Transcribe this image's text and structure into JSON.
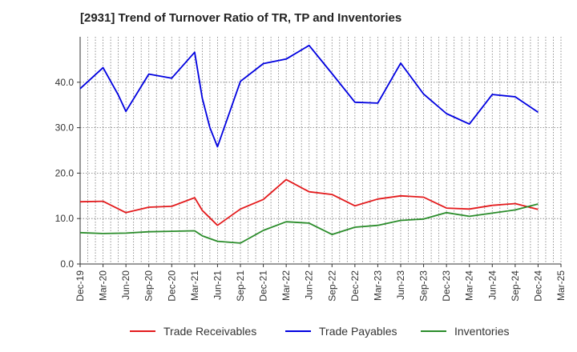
{
  "chart_data": {
    "type": "line",
    "title": "[2931]  Trend of Turnover Ratio of TR, TP and Inventories",
    "xlabel": "",
    "ylabel": "",
    "ylim": [
      0,
      50
    ],
    "yticks": [
      "0.0",
      "10.0",
      "20.0",
      "30.0",
      "40.0"
    ],
    "ytick_values": [
      0,
      10,
      20,
      30,
      40
    ],
    "x": [
      "Dec-19",
      "Jan-20",
      "Feb-20",
      "Mar-20",
      "Apr-20",
      "May-20",
      "Jun-20",
      "Jul-20",
      "Aug-20",
      "Sep-20",
      "Oct-20",
      "Nov-20",
      "Dec-20",
      "Jan-21",
      "Feb-21",
      "Mar-21",
      "Apr-21",
      "May-21",
      "Jun-21",
      "Jul-21",
      "Aug-21",
      "Sep-21",
      "Oct-21",
      "Nov-21",
      "Dec-21",
      "Jan-22",
      "Feb-22",
      "Mar-22",
      "Apr-22",
      "May-22",
      "Jun-22",
      "Jul-22",
      "Aug-22",
      "Sep-22",
      "Oct-22",
      "Nov-22",
      "Dec-22",
      "Jan-23",
      "Feb-23",
      "Mar-23",
      "Apr-23",
      "May-23",
      "Jun-23",
      "Jul-23",
      "Aug-23",
      "Sep-23",
      "Oct-23",
      "Nov-23",
      "Dec-23",
      "Jan-24",
      "Feb-24",
      "Mar-24",
      "Apr-24",
      "May-24",
      "Jun-24",
      "Jul-24",
      "Aug-24",
      "Sep-24",
      "Oct-24",
      "Nov-24",
      "Dec-24",
      "Jan-25",
      "Feb-25",
      "Mar-25"
    ],
    "xtick_labels": [
      "Dec-19",
      "Mar-20",
      "Jun-20",
      "Sep-20",
      "Dec-20",
      "Mar-21",
      "Jun-21",
      "Sep-21",
      "Dec-21",
      "Mar-22",
      "Jun-22",
      "Sep-22",
      "Dec-22",
      "Mar-23",
      "Jun-23",
      "Sep-23",
      "Dec-23",
      "Mar-24",
      "Jun-24",
      "Sep-24",
      "Dec-24",
      "Mar-25"
    ],
    "grid": true,
    "legend_position": "bottom",
    "series": [
      {
        "name": "Trade Receivables",
        "color": "#e31a1c",
        "points": [
          [
            "Dec-19",
            13.7
          ],
          [
            "Mar-20",
            13.8
          ],
          [
            "Jun-20",
            11.3
          ],
          [
            "Sep-20",
            12.5
          ],
          [
            "Dec-20",
            12.7
          ],
          [
            "Mar-21",
            14.6
          ],
          [
            "Apr-21",
            11.8
          ],
          [
            "Jun-21",
            8.5
          ],
          [
            "Sep-21",
            12.1
          ],
          [
            "Dec-21",
            14.2
          ],
          [
            "Mar-22",
            18.6
          ],
          [
            "Jun-22",
            15.9
          ],
          [
            "Sep-22",
            15.3
          ],
          [
            "Dec-22",
            12.8
          ],
          [
            "Mar-23",
            14.3
          ],
          [
            "Jun-23",
            15.0
          ],
          [
            "Sep-23",
            14.7
          ],
          [
            "Dec-23",
            12.3
          ],
          [
            "Mar-24",
            12.1
          ],
          [
            "Jun-24",
            12.9
          ],
          [
            "Sep-24",
            13.3
          ],
          [
            "Dec-24",
            12.0
          ]
        ]
      },
      {
        "name": "Trade Payables",
        "color": "#0000e0",
        "points": [
          [
            "Dec-19",
            38.6
          ],
          [
            "Mar-20",
            43.2
          ],
          [
            "May-20",
            37.2
          ],
          [
            "Jun-20",
            33.6
          ],
          [
            "Sep-20",
            41.8
          ],
          [
            "Dec-20",
            40.9
          ],
          [
            "Mar-21",
            46.6
          ],
          [
            "Apr-21",
            36.5
          ],
          [
            "May-21",
            30.0
          ],
          [
            "Jun-21",
            25.8
          ],
          [
            "Sep-21",
            40.2
          ],
          [
            "Dec-21",
            44.1
          ],
          [
            "Mar-22",
            45.1
          ],
          [
            "Jun-22",
            48.1
          ],
          [
            "Sep-22",
            41.9
          ],
          [
            "Dec-22",
            35.6
          ],
          [
            "Mar-23",
            35.4
          ],
          [
            "Jun-23",
            44.2
          ],
          [
            "Sep-23",
            37.4
          ],
          [
            "Dec-23",
            33.1
          ],
          [
            "Mar-24",
            30.8
          ],
          [
            "Jun-24",
            37.3
          ],
          [
            "Sep-24",
            36.8
          ],
          [
            "Dec-24",
            33.4
          ]
        ]
      },
      {
        "name": "Inventories",
        "color": "#2a8c2a",
        "points": [
          [
            "Dec-19",
            6.9
          ],
          [
            "Mar-20",
            6.7
          ],
          [
            "Jun-20",
            6.8
          ],
          [
            "Sep-20",
            7.1
          ],
          [
            "Dec-20",
            7.2
          ],
          [
            "Mar-21",
            7.3
          ],
          [
            "Apr-21",
            6.2
          ],
          [
            "Jun-21",
            5.0
          ],
          [
            "Sep-21",
            4.6
          ],
          [
            "Dec-21",
            7.4
          ],
          [
            "Mar-22",
            9.3
          ],
          [
            "Jun-22",
            9.0
          ],
          [
            "Sep-22",
            6.5
          ],
          [
            "Dec-22",
            8.1
          ],
          [
            "Mar-23",
            8.5
          ],
          [
            "Jun-23",
            9.6
          ],
          [
            "Sep-23",
            9.9
          ],
          [
            "Dec-23",
            11.3
          ],
          [
            "Mar-24",
            10.5
          ],
          [
            "Jun-24",
            11.2
          ],
          [
            "Sep-24",
            11.9
          ],
          [
            "Dec-24",
            13.2
          ]
        ]
      }
    ]
  }
}
